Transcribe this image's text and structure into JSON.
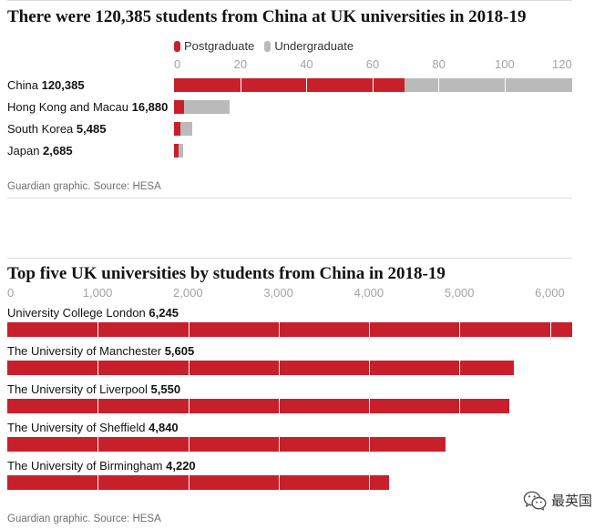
{
  "chart_data": [
    {
      "type": "bar",
      "horizontal": true,
      "stacked": true,
      "title": "There were 120,385 students from China at UK universities in 2018-19",
      "categories": [
        "China",
        "Hong Kong and Macau",
        "South Korea",
        "Japan"
      ],
      "value_labels": [
        "120,385",
        "16,880",
        "5,485",
        "2,685"
      ],
      "series": [
        {
          "name": "Postgraduate",
          "color": "#c8202b",
          "values": [
            69600,
            3000,
            1900,
            1300
          ]
        },
        {
          "name": "Undergraduate",
          "color": "#bababa",
          "values": [
            50785,
            13880,
            3585,
            1385
          ]
        }
      ],
      "xlim": [
        0,
        120385
      ],
      "xticks": [
        0,
        20000,
        40000,
        60000,
        80000,
        100000,
        120000
      ],
      "xtick_labels": [
        "0",
        "20",
        "40",
        "60",
        "80",
        "100",
        "120"
      ],
      "source": "Guardian graphic. Source: HESA"
    },
    {
      "type": "bar",
      "horizontal": true,
      "stacked": false,
      "title": "Top five UK universities by students from China in 2018-19",
      "categories": [
        "University College London",
        "The University of Manchester",
        "The University of Liverpool",
        "The University of Sheffield",
        "The University of Birmingham"
      ],
      "value_labels": [
        "6,245",
        "5,605",
        "5,550",
        "4,840",
        "4,220"
      ],
      "values": [
        6245,
        5605,
        5550,
        4840,
        4220
      ],
      "color": "#c8202b",
      "xlim": [
        0,
        6245
      ],
      "xticks": [
        0,
        1000,
        2000,
        3000,
        4000,
        5000,
        6000
      ],
      "xtick_labels": [
        "0",
        "1,000",
        "2,000",
        "3,000",
        "4,000",
        "5,000",
        "6,000"
      ],
      "source": "Guardian graphic. Source: HESA"
    }
  ],
  "watermark": {
    "icon": "wechat-icon",
    "text": "最英国"
  }
}
